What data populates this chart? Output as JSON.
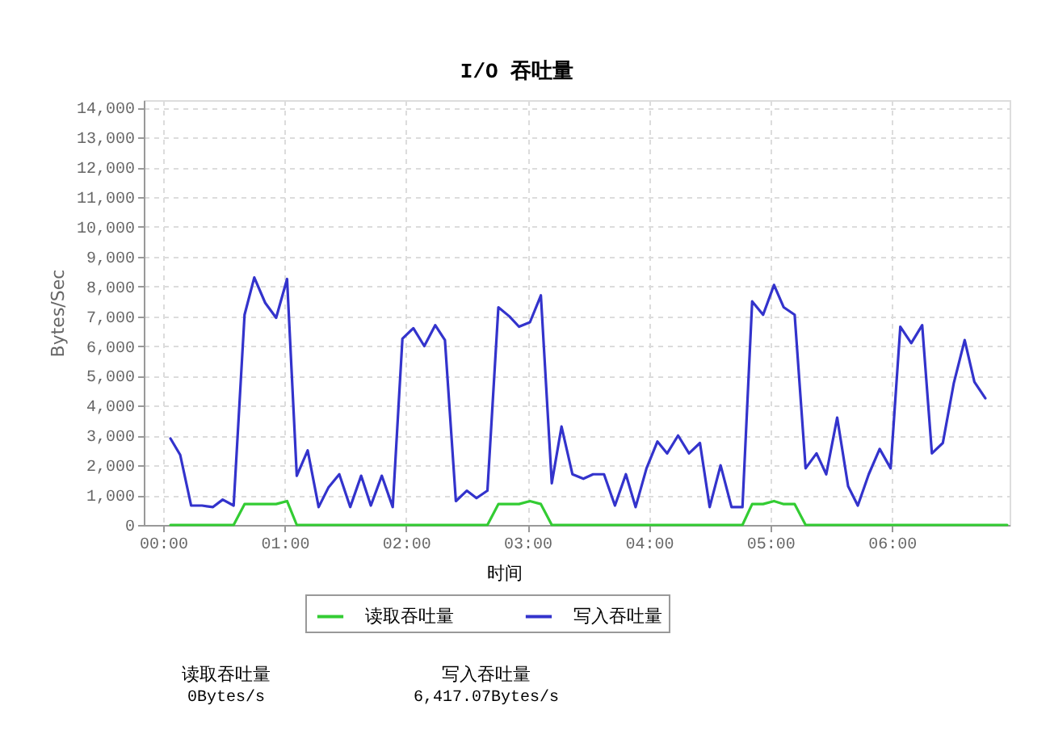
{
  "chart_data": {
    "type": "line",
    "title": "I/O 吞吐量",
    "xlabel": "时间",
    "ylabel": "Bytes/Sec",
    "x": [
      0.06,
      0.14,
      0.23,
      0.32,
      0.41,
      0.49,
      0.58,
      0.67,
      0.75,
      0.84,
      0.93,
      1.02,
      1.1,
      1.19,
      1.28,
      1.36,
      1.45,
      1.54,
      1.63,
      1.71,
      1.8,
      1.89,
      1.97,
      2.06,
      2.15,
      2.24,
      2.32,
      2.41,
      2.5,
      2.58,
      2.67,
      2.76,
      2.85,
      2.93,
      3.02,
      3.11,
      3.2,
      3.28,
      3.37,
      3.46,
      3.54,
      3.63,
      3.72,
      3.81,
      3.89,
      3.98,
      4.07,
      4.15,
      4.24,
      4.33,
      4.42,
      4.5,
      4.59,
      4.68,
      4.77,
      4.85,
      4.94,
      5.03,
      5.11,
      5.2,
      5.29,
      5.38,
      5.46,
      5.55,
      5.64,
      5.72,
      5.81,
      5.9,
      5.99,
      6.07,
      6.16,
      6.25,
      6.33,
      6.42,
      6.51,
      6.6,
      6.68,
      6.77,
      6.86,
      6.95
    ],
    "series": [
      {
        "name": "读取吞吐量",
        "color": "#33cc33",
        "values": [
          0,
          0,
          0,
          0,
          0,
          0,
          0,
          700,
          700,
          700,
          700,
          800,
          0,
          0,
          0,
          0,
          0,
          0,
          0,
          0,
          0,
          0,
          0,
          0,
          0,
          0,
          0,
          0,
          0,
          0,
          0,
          700,
          700,
          700,
          800,
          700,
          0,
          0,
          0,
          0,
          0,
          0,
          0,
          0,
          0,
          0,
          0,
          0,
          0,
          0,
          0,
          0,
          0,
          0,
          0,
          700,
          700,
          800,
          700,
          700,
          0,
          0,
          0,
          0,
          0,
          0,
          0,
          0,
          0,
          0,
          0,
          0,
          0,
          0,
          0,
          0,
          0,
          0,
          0,
          0
        ]
      },
      {
        "name": "写入吞吐量",
        "color": "#3333cc",
        "values": [
          2900,
          2350,
          650,
          650,
          600,
          850,
          650,
          7050,
          8300,
          7450,
          6950,
          8250,
          1650,
          2500,
          600,
          1250,
          1700,
          600,
          1650,
          650,
          1650,
          600,
          6250,
          6600,
          6000,
          6700,
          6200,
          800,
          1150,
          900,
          1150,
          7300,
          7000,
          6650,
          6800,
          7700,
          1400,
          3300,
          1700,
          1550,
          1700,
          1700,
          650,
          1700,
          600,
          1900,
          2800,
          2400,
          3000,
          2400,
          2750,
          600,
          2000,
          600,
          600,
          7500,
          7050,
          8050,
          7300,
          7050,
          1900,
          2400,
          1700,
          3600,
          1300,
          650,
          1700,
          2550,
          1900,
          6650,
          6100,
          6700,
          2400,
          2750,
          4750,
          6200,
          4800,
          4250,
          null,
          null
        ]
      }
    ],
    "xlim": [
      -0.16,
      6.97
    ],
    "xticks": [
      {
        "value": 0,
        "label": "00:00"
      },
      {
        "value": 1,
        "label": "01:00"
      },
      {
        "value": 2,
        "label": "02:00"
      },
      {
        "value": 3,
        "label": "03:00"
      },
      {
        "value": 4,
        "label": "04:00"
      },
      {
        "value": 5,
        "label": "05:00"
      },
      {
        "value": 6,
        "label": "06:00"
      }
    ],
    "ylim": [
      0,
      14250
    ],
    "yticks": [
      0,
      {
        "value": 1000,
        "label": "1,000"
      },
      {
        "value": 2000,
        "label": "2,000"
      },
      {
        "value": 3000,
        "label": "3,000"
      },
      {
        "value": 4000,
        "label": "4,000"
      },
      {
        "value": 5000,
        "label": "5,000"
      },
      {
        "value": 6000,
        "label": "6,000"
      },
      {
        "value": 7000,
        "label": "7,000"
      },
      {
        "value": 8000,
        "label": "8,000"
      },
      {
        "value": 9000,
        "label": "9,000"
      },
      {
        "value": 10000,
        "label": "10,000"
      },
      {
        "value": 11000,
        "label": "11,000"
      },
      {
        "value": 12000,
        "label": "12,000"
      },
      {
        "value": 13000,
        "label": "13,000"
      },
      {
        "value": 14000,
        "label": "14,000"
      }
    ],
    "grid": true,
    "legend": "bottom",
    "line_style": "solid",
    "annotations": [
      "读取吞吐量",
      "0Bytes/s",
      "写入吞吐量",
      "6,417.07Bytes/s"
    ]
  }
}
